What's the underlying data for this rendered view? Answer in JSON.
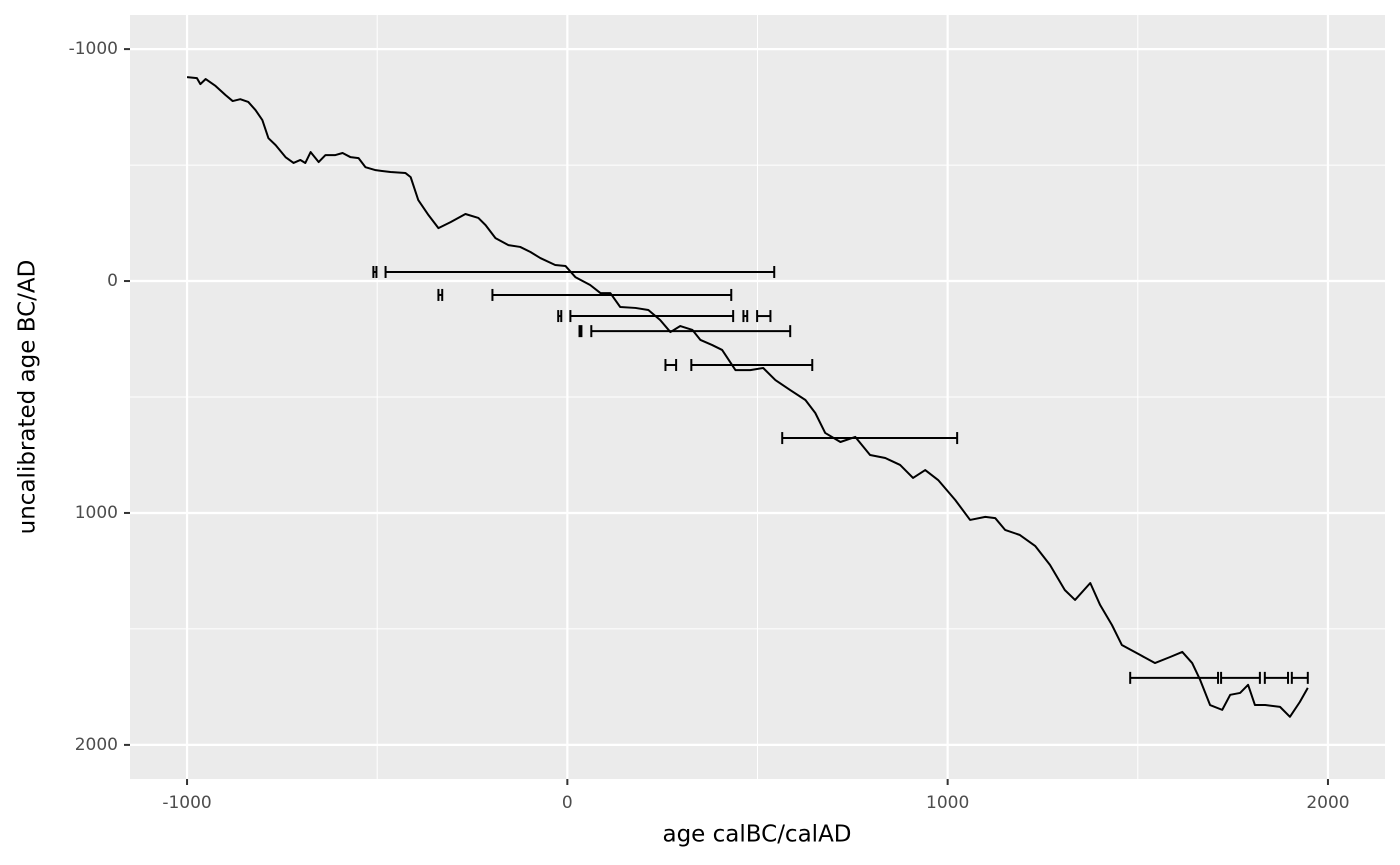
{
  "chart_data": {
    "type": "line",
    "xlabel": "age calBC/calAD",
    "ylabel": "uncalibrated age BC/AD",
    "xlim": [
      -1150,
      2150
    ],
    "ylim": [
      -1147,
      2147
    ],
    "y_reversed": true,
    "xticks": [
      -1000,
      0,
      1000,
      2000
    ],
    "yticks": [
      -1000,
      0,
      1000,
      2000
    ],
    "x_minor_grid": [
      -500,
      500,
      1500
    ],
    "y_minor_grid": [
      -500,
      500,
      1500
    ],
    "grid": true,
    "color": "#000000",
    "x": [
      -1000,
      -974,
      -965,
      -951,
      -925,
      -899,
      -880,
      -860,
      -839,
      -820,
      -802,
      -786,
      -767,
      -741,
      -720,
      -702,
      -689,
      -675,
      -654,
      -636,
      -610,
      -591,
      -570,
      -549,
      -531,
      -504,
      -465,
      -426,
      -412,
      -392,
      -365,
      -339,
      -307,
      -268,
      -234,
      -215,
      -189,
      -155,
      -124,
      -97,
      -71,
      -32,
      -5,
      21,
      60,
      87,
      113,
      139,
      179,
      213,
      244,
      271,
      297,
      329,
      350,
      381,
      407,
      442,
      481,
      515,
      547,
      586,
      626,
      652,
      678,
      718,
      757,
      796,
      836,
      875,
      909,
      941,
      975,
      1020,
      1059,
      1099,
      1125,
      1151,
      1190,
      1230,
      1269,
      1308,
      1335,
      1375,
      1401,
      1432,
      1458,
      1506,
      1545,
      1585,
      1617,
      1643,
      1664,
      1690,
      1722,
      1743,
      1769,
      1790,
      1808,
      1835,
      1874,
      1900,
      1926,
      1947
    ],
    "y": [
      -879,
      -875,
      -849,
      -871,
      -841,
      -802,
      -776,
      -784,
      -772,
      -737,
      -694,
      -616,
      -586,
      -534,
      -509,
      -522,
      -509,
      -556,
      -513,
      -543,
      -543,
      -552,
      -534,
      -530,
      -491,
      -478,
      -470,
      -466,
      -448,
      -349,
      -284,
      -228,
      -254,
      -289,
      -272,
      -241,
      -185,
      -155,
      -147,
      -125,
      -99,
      -69,
      -65,
      -17,
      17,
      52,
      52,
      112,
      116,
      125,
      168,
      220,
      194,
      211,
      254,
      276,
      297,
      384,
      384,
      375,
      427,
      470,
      513,
      569,
      655,
      694,
      672,
      750,
      763,
      793,
      849,
      815,
      858,
      944,
      1030,
      1017,
      1022,
      1073,
      1095,
      1142,
      1224,
      1332,
      1375,
      1302,
      1397,
      1483,
      1569,
      1612,
      1647,
      1621,
      1599,
      1647,
      1720,
      1828,
      1849,
      1784,
      1776,
      1741,
      1828,
      1828,
      1836,
      1879,
      1815,
      1754
    ],
    "ranges": [
      {
        "y": -39,
        "xmin": -510,
        "xmax": -502
      },
      {
        "y": -39,
        "xmin": -478,
        "xmax": 544
      },
      {
        "y": 60,
        "xmin": -339,
        "xmax": -329
      },
      {
        "y": 60,
        "xmin": -197,
        "xmax": 431
      },
      {
        "y": 151,
        "xmin": -24,
        "xmax": -16
      },
      {
        "y": 151,
        "xmin": 8,
        "xmax": 436
      },
      {
        "y": 151,
        "xmin": 463,
        "xmax": 473
      },
      {
        "y": 151,
        "xmin": 499,
        "xmax": 534
      },
      {
        "y": 216,
        "xmin": 32,
        "xmax": 37
      },
      {
        "y": 216,
        "xmin": 63,
        "xmax": 586
      },
      {
        "y": 362,
        "xmin": 258,
        "xmax": 286
      },
      {
        "y": 362,
        "xmin": 326,
        "xmax": 644
      },
      {
        "y": 677,
        "xmin": 565,
        "xmax": 1025
      },
      {
        "y": 1711,
        "xmin": 1480,
        "xmax": 1711
      },
      {
        "y": 1711,
        "xmin": 1719,
        "xmax": 1821
      },
      {
        "y": 1711,
        "xmin": 1834,
        "xmax": 1895
      },
      {
        "y": 1711,
        "xmin": 1905,
        "xmax": 1947
      }
    ]
  }
}
